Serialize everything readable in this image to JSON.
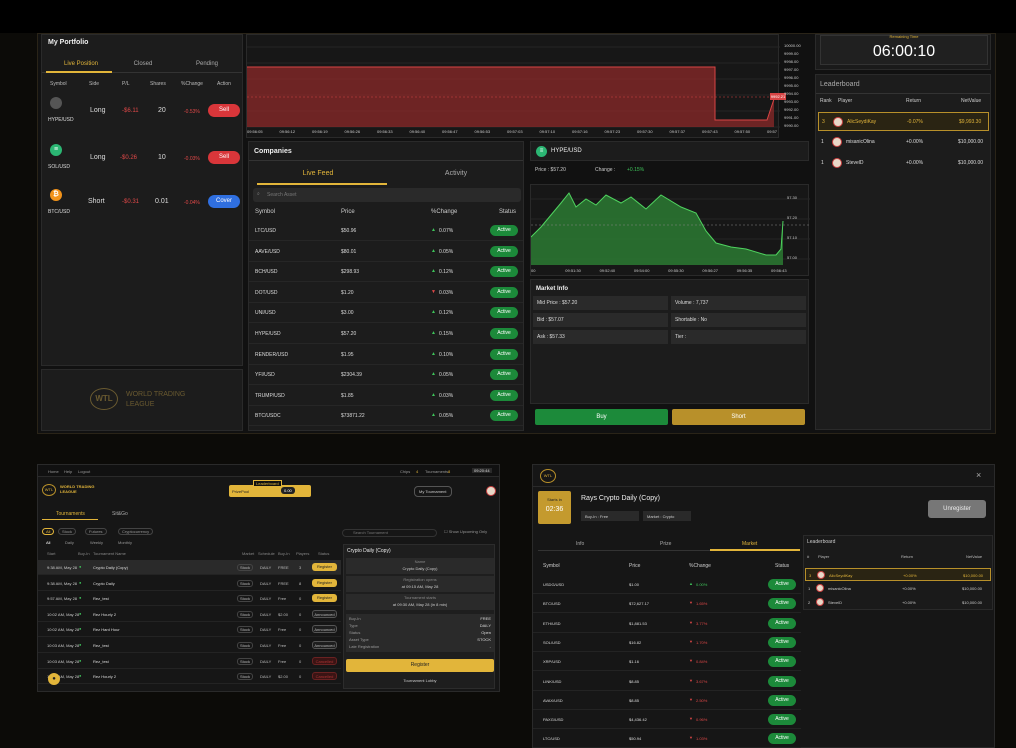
{
  "portfolio": {
    "title": "My Portfolio",
    "tabs": [
      "Live Position",
      "Closed",
      "Pending"
    ],
    "headers": [
      "Symbol",
      "Side",
      "P/L",
      "Shares",
      "%Change",
      "Action"
    ],
    "rows": [
      {
        "symbol": "HYPE/USD",
        "side": "Long",
        "pl": "-$6.11",
        "shares": "20",
        "change": "-0.53%",
        "action": "Sell"
      },
      {
        "symbol": "SOL/USD",
        "side": "Long",
        "pl": "-$0.26",
        "shares": "10",
        "change": "-0.03%",
        "action": "Sell"
      },
      {
        "symbol": "BTC/USD",
        "side": "Short",
        "pl": "-$0.31",
        "shares": "0.01",
        "change": "-0.04%",
        "action": "Cover"
      }
    ],
    "logo_text": "WORLD TRADING LEAGUE",
    "logo_mark": "WTL"
  },
  "main_chart": {
    "y_ticks": [
      "10000.00",
      "9999.00",
      "9998.00",
      "9997.00",
      "9996.00",
      "9995.00",
      "9994.00",
      "9993.00",
      "9992.00",
      "9991.00",
      "9990.00"
    ],
    "x_ticks": [
      "09:56:05",
      "09:56:12",
      "09:56:19",
      "09:56:26",
      "09:56:33",
      "09:56:40",
      "09:56:47",
      "09:56:53",
      "09:57:03",
      "09:57:10",
      "09:57:16",
      "09:57:23",
      "09:57:30",
      "09:57:37",
      "09:57:43",
      "09:57:50",
      "09:57"
    ],
    "price_tag": "9992.21"
  },
  "companies": {
    "title": "Companies",
    "tabs": [
      "Live Feed",
      "Activity"
    ],
    "search_placeholder": "Search Asset",
    "headers": [
      "Symbol",
      "Price",
      "%Change",
      "Status"
    ],
    "rows": [
      {
        "symbol": "LTC/USD",
        "price": "$50.96",
        "change": "0.07%",
        "dir": "up",
        "status": "Active"
      },
      {
        "symbol": "AAVE/USD",
        "price": "$80.01",
        "change": "0.05%",
        "dir": "up",
        "status": "Active"
      },
      {
        "symbol": "BCH/USD",
        "price": "$298.93",
        "change": "0.12%",
        "dir": "up",
        "status": "Active"
      },
      {
        "symbol": "DOT/USD",
        "price": "$1.20",
        "change": "0.03%",
        "dir": "down",
        "status": "Active"
      },
      {
        "symbol": "UNI/USD",
        "price": "$3.00",
        "change": "0.12%",
        "dir": "up",
        "status": "Active"
      },
      {
        "symbol": "HYPE/USD",
        "price": "$57.20",
        "change": "0.15%",
        "dir": "up",
        "status": "Active"
      },
      {
        "symbol": "RENDER/USD",
        "price": "$1.95",
        "change": "0.10%",
        "dir": "up",
        "status": "Active"
      },
      {
        "symbol": "YFI/USD",
        "price": "$2304.39",
        "change": "0.05%",
        "dir": "up",
        "status": "Active"
      },
      {
        "symbol": "TRUMP/USD",
        "price": "$1.85",
        "change": "0.03%",
        "dir": "up",
        "status": "Active"
      },
      {
        "symbol": "BTC/USDC",
        "price": "$73871.22",
        "change": "0.05%",
        "dir": "up",
        "status": "Active"
      }
    ]
  },
  "hype": {
    "title": "HYPE/USD",
    "price_label": "Price : $57.20",
    "change_label": "Change :",
    "change_value": "+0.15%",
    "y_ticks": [
      "57.30",
      "57.20",
      "57.10",
      "57.00"
    ],
    "x_ticks": [
      "00",
      "09:51:30",
      "09:52:40",
      "09:54:00",
      "09:55:30",
      "09:56:27",
      "09:56:35",
      "09:56:43"
    ],
    "market_info_title": "Market Info",
    "info": [
      [
        "Mid Price : $57.20",
        "Volume : 7,737"
      ],
      [
        "Bid : $57.07",
        "Shortable : No"
      ],
      [
        "Ask : $57.33",
        "Tier :"
      ]
    ],
    "buy_label": "Buy",
    "short_label": "Short"
  },
  "timer": {
    "label": "Remaining Time",
    "value": "06:00:10"
  },
  "leaderboard": {
    "title": "Leaderboard",
    "headers": [
      "Rank",
      "Player",
      "Return",
      "NetValue"
    ],
    "rows": [
      {
        "rank": "3",
        "player": "AlicSeydiKay",
        "ret": "-0.07%",
        "net": "$9,993.30"
      },
      {
        "rank": "1",
        "player": "misanicOlina",
        "ret": "+0.00%",
        "net": "$10,000.00"
      },
      {
        "rank": "1",
        "player": "StevelD",
        "ret": "+0.00%",
        "net": "$10,000.00"
      }
    ]
  },
  "tournaments": {
    "top_links": [
      "Home",
      "Help",
      "Logout"
    ],
    "chips_label": "Chips",
    "chips_value": "4",
    "tournaments_label": "Tournaments",
    "tournaments_value": "8",
    "clock": "09:20:44",
    "brand": "WORLD TRADING LEAGUE",
    "leaderboard_badge": "Leaderboard",
    "prizepool_label": "PrizePool",
    "prizepool_value": "0.00",
    "my_tournament": "My Tournament",
    "tabs": [
      "Tournaments",
      "Sit&Go"
    ],
    "filters": [
      "All",
      "Stock",
      "Futures",
      "Cryptocurrency"
    ],
    "sub_filters": [
      "All",
      "Daily",
      "Weekly",
      "Monthly"
    ],
    "search_placeholder": "Search Tournament",
    "show_label": "Show Upcoming Only",
    "headers": [
      "Start",
      "Buy-In",
      "Tournament Name",
      "Market",
      "Schedule",
      "Buy-In",
      "Players",
      "Status"
    ],
    "rows": [
      {
        "start": "9:38 AM, May 28",
        "name": "Crypto Daily (Copy)",
        "market": "Stock",
        "sched": "DAILY",
        "buy": "FREE",
        "players": "3",
        "status": "Register"
      },
      {
        "start": "9:38 AM, May 28",
        "name": "Crypto Daily",
        "market": "Stock",
        "sched": "DAILY",
        "buy": "FREE",
        "players": "8",
        "status": "Register"
      },
      {
        "start": "9:57 AM, May 28",
        "name": "Rez_test",
        "market": "Stock",
        "sched": "DAILY",
        "buy": "Free",
        "players": "0",
        "status": "Register"
      },
      {
        "start": "10:02 AM, May 28",
        "name": "Rez Hourly 2",
        "market": "Stock",
        "sched": "DAILY",
        "buy": "$2.00",
        "players": "0",
        "status": "Announced"
      },
      {
        "start": "10:02 AM, May 28",
        "name": "Rez Hard Hour",
        "market": "Stock",
        "sched": "DAILY",
        "buy": "Free",
        "players": "0",
        "status": "Announced"
      },
      {
        "start": "10:03 AM, May 28",
        "name": "Rez_test",
        "market": "Stock",
        "sched": "DAILY",
        "buy": "Free",
        "players": "0",
        "status": "Announced"
      },
      {
        "start": "10:03 AM, May 28",
        "name": "Rez_test",
        "market": "Stock",
        "sched": "DAILY",
        "buy": "Free",
        "players": "0",
        "status": "Cancelled"
      },
      {
        "start": "10:05 AM, May 28",
        "name": "Rez Hourly 2",
        "market": "Stock",
        "sched": "DAILY",
        "buy": "$2.00",
        "players": "0",
        "status": "Cancelled"
      }
    ],
    "detail_title": "Crypto Daily (Copy)",
    "detail_blocks": [
      "Name",
      "Crypto Daily (Copy)",
      "Registration opens",
      "at 09:15 AM, May 28",
      "Tournament starts",
      "at 09:30 AM, May 28 (in 8 min)"
    ],
    "detail_kv": [
      [
        "Buy-In",
        "FREE"
      ],
      [
        "Type",
        "DAILY"
      ],
      [
        "Status",
        "Open"
      ],
      [
        "Asset Type",
        "STOCK"
      ],
      [
        "Late Registration",
        "-"
      ]
    ],
    "register_btn": "Register",
    "lobby_btn": "Tournament Lobby"
  },
  "lobby": {
    "title": "Rays Crypto Daily (Copy)",
    "starts_label": "Starts in",
    "starts_value": "02:36",
    "buyin_label": "Buy-In :",
    "buyin_value": "Free",
    "market_label": "Market :",
    "market_value": "Crypto",
    "unregister": "Unregister",
    "tabs": [
      "Info",
      "Prize",
      "Market"
    ],
    "headers": [
      "Symbol",
      "Price",
      "%Change",
      "Status"
    ],
    "rows": [
      {
        "symbol": "USDG/USD",
        "price": "$1.00",
        "change": "0.00%",
        "dir": "up"
      },
      {
        "symbol": "BTC/USD",
        "price": "$72,627.17",
        "change": "1.65%",
        "dir": "down"
      },
      {
        "symbol": "ETH/USD",
        "price": "$1,881.53",
        "change": "3.77%",
        "dir": "down"
      },
      {
        "symbol": "SOL/USD",
        "price": "$16.82",
        "change": "1.70%",
        "dir": "down"
      },
      {
        "symbol": "XRP/USD",
        "price": "$1.16",
        "change": "0.84%",
        "dir": "down"
      },
      {
        "symbol": "LINK/USD",
        "price": "$8.85",
        "change": "3.67%",
        "dir": "down"
      },
      {
        "symbol": "AVAX/USD",
        "price": "$8.85",
        "change": "2.50%",
        "dir": "down"
      },
      {
        "symbol": "PAXG/USD",
        "price": "$4,436.42",
        "change": "0.96%",
        "dir": "down"
      },
      {
        "symbol": "LTC/USD",
        "price": "$50.94",
        "change": "1.03%",
        "dir": "down"
      }
    ],
    "status_label": "Active",
    "leaderboard_title": "Leaderboard",
    "lb_headers": [
      "#",
      "Player",
      "Return",
      "NetValue"
    ],
    "lb_rows": [
      {
        "rank": "3",
        "player": "AlicSeydiKay",
        "ret": "+0.00%",
        "net": "$10,000.00"
      },
      {
        "rank": "1",
        "player": "misanicOlina",
        "ret": "+0.00%",
        "net": "$10,000.00"
      },
      {
        "rank": "2",
        "player": "StevelD",
        "ret": "+0.00%",
        "net": "$10,000.00"
      }
    ]
  },
  "colors": {
    "gold": "#e2b53a",
    "green": "#3ec35a",
    "red": "#e04848",
    "blue": "#2f6fe0"
  }
}
